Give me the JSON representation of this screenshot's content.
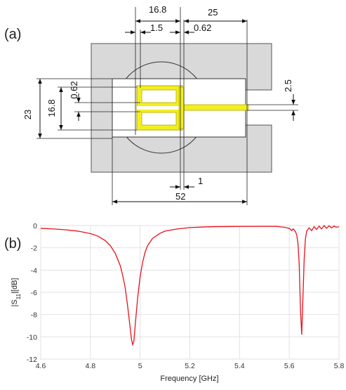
{
  "panel_a": {
    "label": "(a)",
    "dimensions": {
      "slot_outer_width": "16.8",
      "slot_gap": "1.5",
      "total_length_right": "25",
      "line_gap": "0.62",
      "height_total": "23",
      "inner_height": "16.8",
      "left_gap": "0.62",
      "feed_width": "2.5",
      "bottom_gap": "1",
      "total_width": "52"
    },
    "colors": {
      "ground": "#d9d9d9",
      "ground_edge": "#555555",
      "patch": "#f2ef1f",
      "patch_edge": "#b5ab00",
      "substrate": "#ffffff"
    }
  },
  "panel_b": {
    "label": "(b)",
    "chart_data": {
      "type": "line",
      "xlabel": "Frequency [GHz]",
      "ylabel": "|S11|[dB]",
      "xlim": [
        4.6,
        5.8
      ],
      "ylim": [
        -12,
        0
      ],
      "xticks": [
        "4.6",
        "4.8",
        "5",
        "5.2",
        "5.4",
        "5.6",
        "5.8"
      ],
      "yticks": [
        "0",
        "-2",
        "-4",
        "-6",
        "-8",
        "-10",
        "-12"
      ],
      "grid": true,
      "series": [
        {
          "color": "#e8111b",
          "x": [
            4.6,
            4.65,
            4.7,
            4.75,
            4.8,
            4.83,
            4.86,
            4.88,
            4.9,
            4.92,
            4.93,
            4.94,
            4.95,
            4.96,
            4.965,
            4.97,
            4.975,
            4.98,
            4.99,
            5.0,
            5.01,
            5.02,
            5.03,
            5.05,
            5.08,
            5.1,
            5.15,
            5.2,
            5.25,
            5.3,
            5.35,
            5.4,
            5.45,
            5.5,
            5.55,
            5.58,
            5.6,
            5.61,
            5.615,
            5.62,
            5.625,
            5.63,
            5.635,
            5.64,
            5.645,
            5.65,
            5.655,
            5.66,
            5.665,
            5.67,
            5.68,
            5.69,
            5.7,
            5.71,
            5.72,
            5.73,
            5.74,
            5.75,
            5.76,
            5.77,
            5.78,
            5.79,
            5.8
          ],
          "y": [
            -0.25,
            -0.3,
            -0.38,
            -0.5,
            -0.72,
            -0.95,
            -1.35,
            -1.8,
            -2.5,
            -3.6,
            -4.5,
            -5.6,
            -7.3,
            -9.2,
            -10.2,
            -10.7,
            -10.4,
            -9.0,
            -6.5,
            -4.6,
            -3.3,
            -2.4,
            -1.8,
            -1.15,
            -0.7,
            -0.5,
            -0.3,
            -0.18,
            -0.13,
            -0.1,
            -0.09,
            -0.08,
            -0.08,
            -0.07,
            -0.08,
            -0.15,
            -0.25,
            -0.45,
            -0.3,
            -0.4,
            -0.55,
            -0.85,
            -1.6,
            -3.5,
            -7.5,
            -9.8,
            -6.5,
            -3.0,
            -1.2,
            -0.5,
            -0.2,
            -0.45,
            -0.1,
            -0.35,
            -0.05,
            -0.3,
            0.0,
            -0.25,
            -0.02,
            -0.2,
            -0.05,
            -0.15,
            -0.1
          ]
        }
      ]
    }
  }
}
